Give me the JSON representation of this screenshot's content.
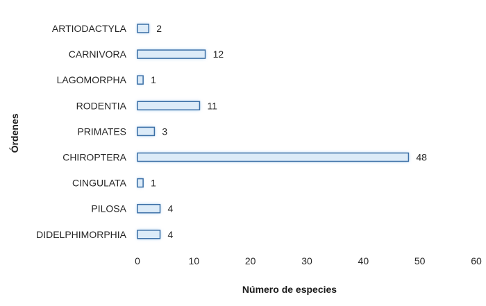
{
  "chart_data": {
    "type": "bar",
    "orientation": "horizontal",
    "categories": [
      "ARTIODACTYLA",
      "CARNIVORA",
      "LAGOMORPHA",
      "RODENTIA",
      "PRIMATES",
      "CHIROPTERA",
      "CINGULATA",
      "PILOSA",
      "DIDELPHIMORPHIA"
    ],
    "values": [
      2,
      12,
      1,
      11,
      3,
      48,
      1,
      4,
      4
    ],
    "xlabel": "Número de especies",
    "ylabel": "Órdenes",
    "xlim": [
      0,
      60
    ],
    "xticks": [
      0,
      10,
      20,
      30,
      40,
      50,
      60
    ],
    "grid": false,
    "data_labels": true,
    "colors": {
      "bar_fill": "#dcebf8",
      "bar_stroke": "#3b6fa6",
      "bar_glow": "#9cc8f0"
    }
  }
}
